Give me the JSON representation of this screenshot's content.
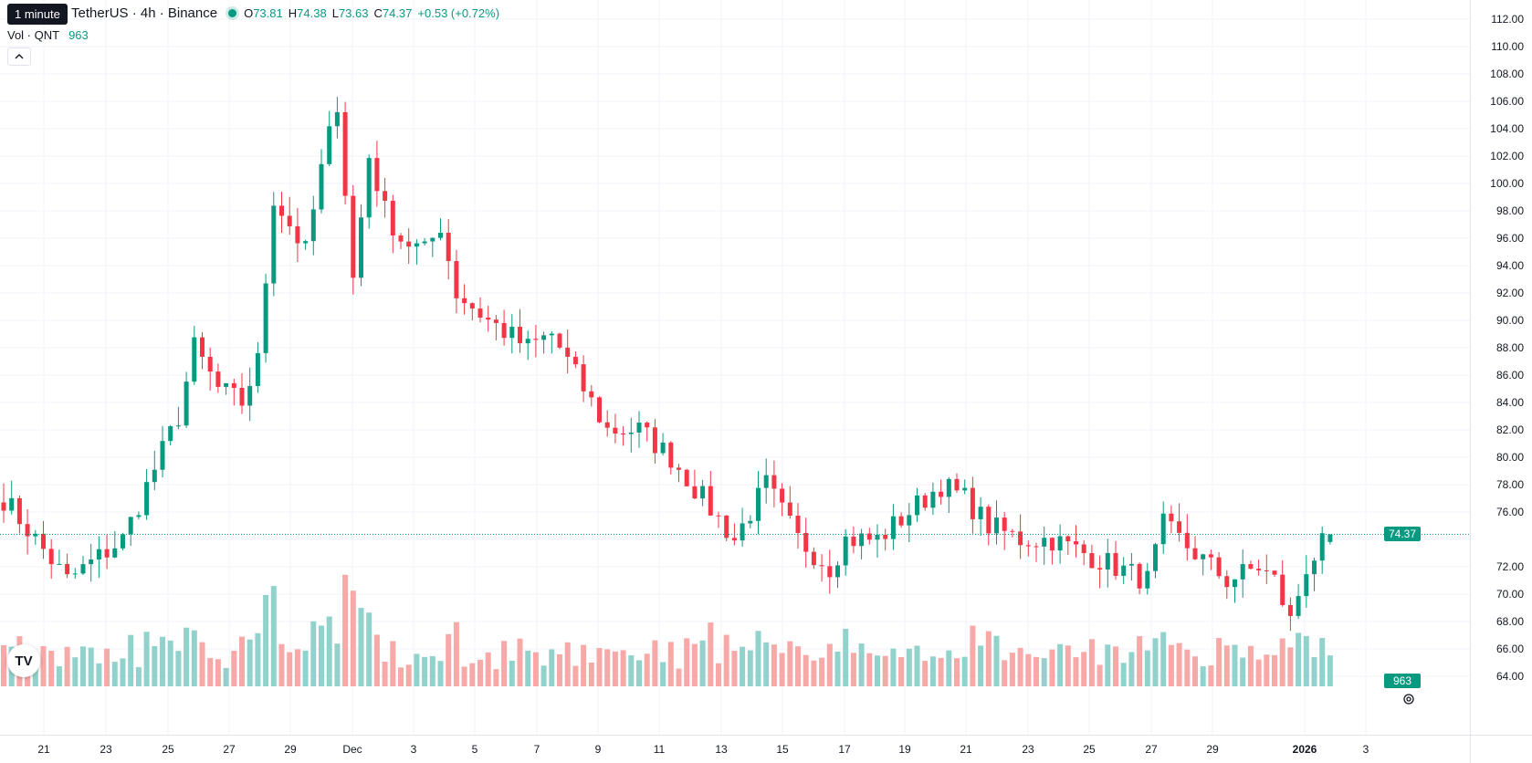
{
  "tooltip": "1 minute",
  "legend": {
    "symbol": "TetherUS · 4h · Binance",
    "open_label": "O",
    "open": "73.81",
    "high_label": "H",
    "high": "74.38",
    "low_label": "L",
    "low": "73.63",
    "close_label": "C",
    "close": "74.37",
    "change": "+0.53 (+0.72%)",
    "volume_label": "Vol · QNT",
    "volume": "963"
  },
  "collapse_icon": "chevron-up-icon",
  "logo_text": "TV",
  "current_price_badge": "74.37",
  "current_volume_badge": "963",
  "colors": {
    "up": "#089981",
    "down": "#f23645",
    "up_volume": "#92d2cc",
    "down_volume": "#f7a9a7",
    "grid": "#f0f3fa"
  },
  "price_scale": {
    "labels": [
      "112.00",
      "110.00",
      "108.00",
      "106.00",
      "104.00",
      "102.00",
      "100.00",
      "98.00",
      "96.00",
      "94.00",
      "92.00",
      "90.00",
      "88.00",
      "86.00",
      "84.00",
      "82.00",
      "80.00",
      "78.00",
      "76.00",
      "72.00",
      "70.00",
      "68.00",
      "66.00",
      "64.00"
    ]
  },
  "time_scale": {
    "labels": [
      "21",
      "23",
      "25",
      "27",
      "29",
      "Dec",
      "3",
      "5",
      "7",
      "9",
      "11",
      "13",
      "15",
      "17",
      "19",
      "21",
      "23",
      "25",
      "27",
      "29",
      "2026",
      "3"
    ]
  },
  "chart_data": {
    "type": "candlestick",
    "interval": "4h",
    "y_range": [
      63,
      113
    ],
    "path": [
      [
        0,
        77
      ],
      [
        8,
        71
      ],
      [
        15,
        74
      ],
      [
        22,
        83
      ],
      [
        24,
        88
      ],
      [
        27,
        85
      ],
      [
        30,
        84
      ],
      [
        32,
        87
      ],
      [
        34,
        99
      ],
      [
        38,
        95
      ],
      [
        40,
        101
      ],
      [
        42,
        106
      ],
      [
        44,
        93
      ],
      [
        46,
        102
      ],
      [
        48,
        98
      ],
      [
        50,
        96
      ],
      [
        53,
        95
      ],
      [
        55,
        97
      ],
      [
        57,
        92
      ],
      [
        61,
        90
      ],
      [
        66,
        88
      ],
      [
        69,
        89
      ],
      [
        72,
        86
      ],
      [
        76,
        82
      ],
      [
        80,
        82
      ],
      [
        84,
        80
      ],
      [
        88,
        77
      ],
      [
        92,
        74
      ],
      [
        96,
        78
      ],
      [
        100,
        74
      ],
      [
        104,
        72
      ],
      [
        106,
        74
      ],
      [
        110,
        74
      ],
      [
        114,
        76
      ],
      [
        118,
        78
      ],
      [
        121,
        77
      ],
      [
        124,
        75
      ],
      [
        128,
        74
      ],
      [
        132,
        74
      ],
      [
        136,
        73
      ],
      [
        140,
        72
      ],
      [
        144,
        71
      ],
      [
        146,
        75
      ],
      [
        150,
        73
      ],
      [
        154,
        71
      ],
      [
        158,
        72
      ],
      [
        160,
        71
      ],
      [
        162,
        68
      ],
      [
        164,
        72
      ],
      [
        167,
        74.37
      ]
    ],
    "volume_range": [
      0,
      2500
    ]
  }
}
